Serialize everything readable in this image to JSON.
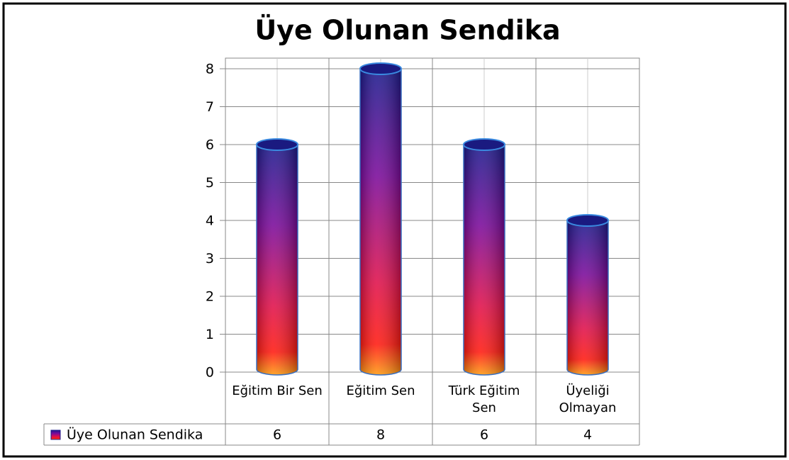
{
  "chart_data": {
    "type": "bar",
    "title": "Üye Olunan Sendika",
    "categories": [
      "Eğitim Bir Sen",
      "Eğitim Sen",
      "Türk Eğitim Sen",
      "Üyeliği Olmayan"
    ],
    "series": [
      {
        "name": "Üye Olunan Sendika",
        "values": [
          6,
          8,
          6,
          4
        ]
      }
    ],
    "ylim": [
      0,
      8
    ],
    "yticks": [
      0,
      1,
      2,
      3,
      4,
      5,
      6,
      7,
      8
    ],
    "grid": true
  }
}
